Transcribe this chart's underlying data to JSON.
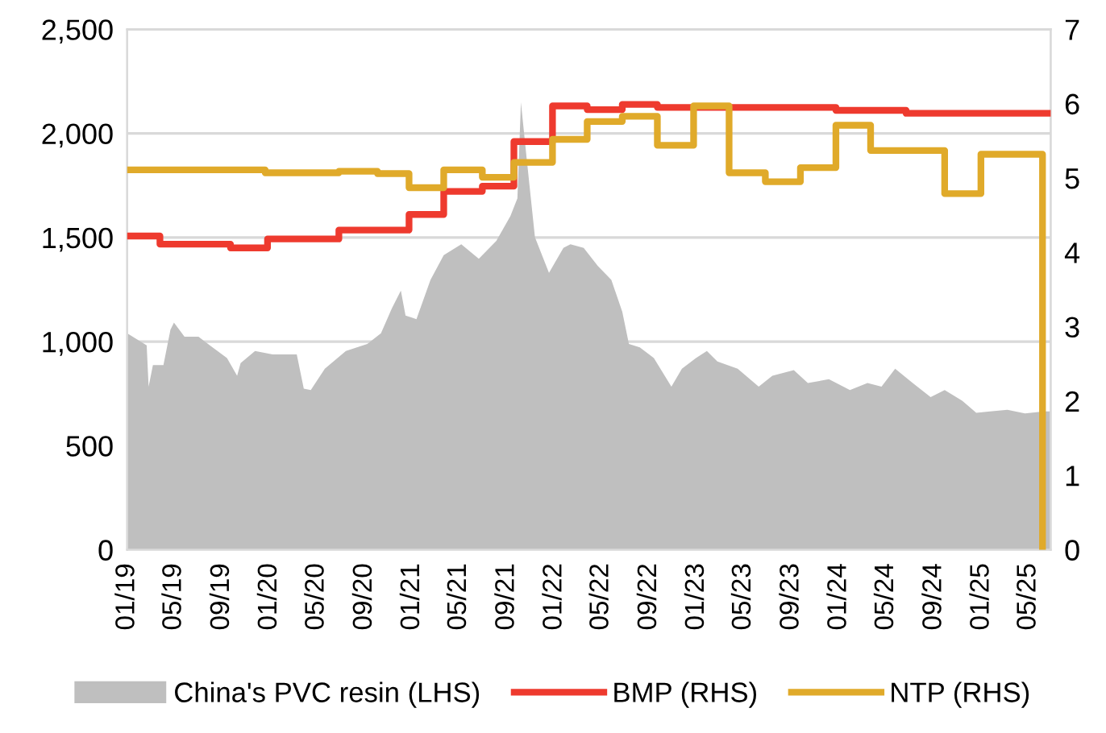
{
  "chart_data": {
    "type": "step",
    "xlim": [
      "2019-01-01",
      "2025-06-27"
    ],
    "xticks": [
      {
        "value": "2019-01-01",
        "label": "01/19"
      },
      {
        "value": "2019-05-01",
        "label": "05/19"
      },
      {
        "value": "2019-09-01",
        "label": "09/19"
      },
      {
        "value": "2020-01-01",
        "label": "01/20"
      },
      {
        "value": "2020-05-01",
        "label": "05/20"
      },
      {
        "value": "2020-09-01",
        "label": "09/20"
      },
      {
        "value": "2021-01-01",
        "label": "01/21"
      },
      {
        "value": "2021-05-01",
        "label": "05/21"
      },
      {
        "value": "2021-09-01",
        "label": "09/21"
      },
      {
        "value": "2022-01-01",
        "label": "01/22"
      },
      {
        "value": "2022-05-01",
        "label": "05/22"
      },
      {
        "value": "2022-09-01",
        "label": "09/22"
      },
      {
        "value": "2023-01-01",
        "label": "01/23"
      },
      {
        "value": "2023-05-01",
        "label": "05/23"
      },
      {
        "value": "2023-09-01",
        "label": "09/23"
      },
      {
        "value": "2024-01-01",
        "label": "01/24"
      },
      {
        "value": "2024-05-01",
        "label": "05/24"
      },
      {
        "value": "2024-09-01",
        "label": "09/24"
      },
      {
        "value": "2025-01-01",
        "label": "01/25"
      },
      {
        "value": "2025-05-01",
        "label": "05/25"
      }
    ],
    "ylim": [
      0,
      2500
    ],
    "yticks": [
      {
        "value": 0,
        "label": "0"
      },
      {
        "value": 500,
        "label": "500"
      },
      {
        "value": 1000,
        "label": "1,000"
      },
      {
        "value": 1500,
        "label": "1,500"
      },
      {
        "value": 2000,
        "label": "2,000"
      },
      {
        "value": 2500,
        "label": "2,500"
      }
    ],
    "y2lim": [
      0,
      7
    ],
    "y2ticks": [
      0,
      1,
      2,
      3,
      4,
      5,
      6,
      7
    ],
    "grid": "y",
    "legend": "bottom",
    "marker": "none",
    "line_style": "solid",
    "series": [
      {
        "name": "China's PVC resin (LHS)",
        "type": "area",
        "color": "#bfbfbf",
        "x": [
          "2019-01-01",
          "2019-02-20",
          "2019-02-25",
          "2019-03-08",
          "2019-04-04",
          "2019-04-22",
          "2019-05-01",
          "2019-05-28",
          "2019-07-03",
          "2019-08-08",
          "2019-09-14",
          "2019-10-10",
          "2019-10-19",
          "2019-11-25",
          "2020-01-09",
          "2020-03-11",
          "2020-03-29",
          "2020-04-16",
          "2020-05-22",
          "2020-07-15",
          "2020-09-08",
          "2020-10-13",
          "2020-11-10",
          "2020-12-03",
          "2020-12-15",
          "2021-01-12",
          "2021-02-17",
          "2021-03-23",
          "2021-05-07",
          "2021-06-21",
          "2021-08-05",
          "2021-09-10",
          "2021-09-28",
          "2021-10-07",
          "2021-10-21",
          "2021-11-12",
          "2021-12-18",
          "2022-01-24",
          "2022-02-11",
          "2022-03-17",
          "2022-04-22",
          "2022-05-27",
          "2022-06-24",
          "2022-07-11",
          "2022-08-08",
          "2022-09-13",
          "2022-10-28",
          "2022-11-24",
          "2022-12-30",
          "2023-01-27",
          "2023-02-23",
          "2023-04-16",
          "2023-06-09",
          "2023-07-14",
          "2023-09-07",
          "2023-10-13",
          "2023-12-06",
          "2024-01-29",
          "2024-03-14",
          "2024-04-19",
          "2024-05-24",
          "2024-07-08",
          "2024-08-23",
          "2024-09-28",
          "2024-11-12",
          "2024-12-18",
          "2025-01-23",
          "2025-03-08",
          "2025-04-22",
          "2025-06-10",
          "2025-06-27"
        ],
        "values": [
          1040,
          982,
          784,
          887,
          887,
          1057,
          1091,
          1023,
          1023,
          972,
          921,
          836,
          897,
          955,
          938,
          938,
          774,
          767,
          870,
          955,
          989,
          1040,
          1160,
          1245,
          1125,
          1108,
          1296,
          1415,
          1467,
          1398,
          1484,
          1603,
          1688,
          2149,
          1893,
          1501,
          1330,
          1450,
          1467,
          1450,
          1364,
          1296,
          1143,
          989,
          972,
          921,
          784,
          870,
          921,
          955,
          904,
          870,
          784,
          836,
          863,
          801,
          819,
          767,
          801,
          784,
          870,
          801,
          733,
          767,
          716,
          658,
          665,
          672,
          655,
          665,
          665
        ]
      },
      {
        "name": "BMP (RHS)",
        "axis": "y2",
        "color": "#ee3a2e",
        "x": [
          "2019-01-01",
          "2019-03-26",
          "2019-09-23",
          "2019-12-27",
          "2020-06-27",
          "2020-12-24",
          "2021-03-23",
          "2021-06-30",
          "2021-09-19",
          "2021-12-27",
          "2022-03-26",
          "2022-06-24",
          "2022-09-22",
          "2023-12-24",
          "2024-06-21",
          "2025-06-27"
        ],
        "values": [
          4.22,
          4.11,
          4.06,
          4.18,
          4.3,
          4.51,
          4.82,
          4.89,
          5.49,
          5.97,
          5.92,
          5.99,
          5.95,
          5.91,
          5.87,
          5.87
        ]
      },
      {
        "name": "NTP (RHS)",
        "axis": "y2",
        "color": "#e0aa2a",
        "x": [
          "2019-01-01",
          "2019-12-21",
          "2020-06-27",
          "2020-10-04",
          "2020-12-24",
          "2021-03-23",
          "2021-06-30",
          "2021-09-19",
          "2021-12-27",
          "2022-03-26",
          "2022-06-24",
          "2022-09-22",
          "2022-12-24",
          "2023-03-25",
          "2023-06-26",
          "2023-09-24",
          "2023-12-24",
          "2024-03-22",
          "2024-09-28",
          "2024-12-30",
          "2025-06-06"
        ],
        "values": [
          5.11,
          5.07,
          5.09,
          5.06,
          4.87,
          5.11,
          5.01,
          5.21,
          5.52,
          5.76,
          5.83,
          5.44,
          5.97,
          5.07,
          4.95,
          5.14,
          5.71,
          5.37,
          4.79,
          5.32,
          0
        ]
      }
    ]
  }
}
